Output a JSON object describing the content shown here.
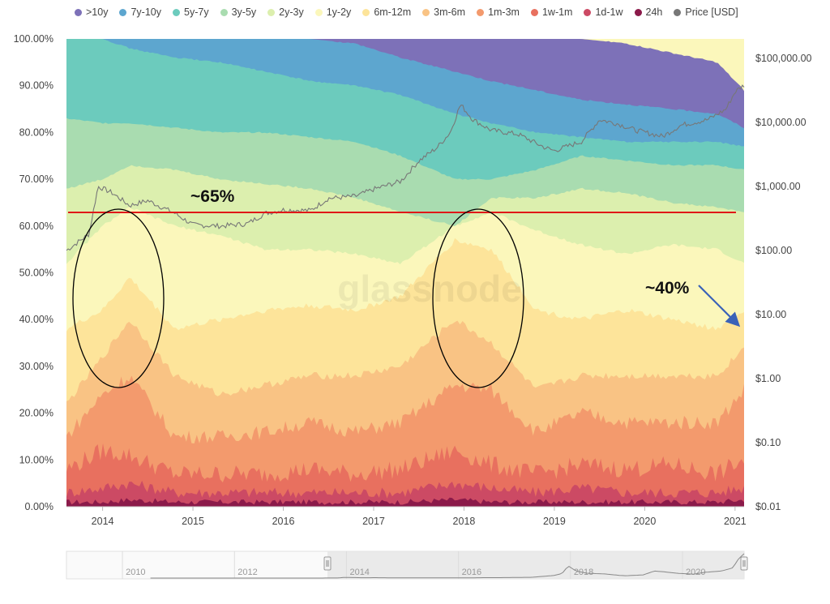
{
  "chart_data": {
    "type": "area",
    "stacked": true,
    "percent_stacked": true,
    "watermark": "glassnode",
    "legend_position": "top",
    "x_ticks": [
      "2014",
      "2015",
      "2016",
      "2017",
      "2018",
      "2019",
      "2020",
      "2021"
    ],
    "y_left": {
      "range": [
        0,
        100
      ],
      "ticks": [
        "0.00%",
        "10.00%",
        "20.00%",
        "30.00%",
        "40.00%",
        "50.00%",
        "60.00%",
        "70.00%",
        "80.00%",
        "90.00%",
        "100.00%"
      ]
    },
    "y_right": {
      "scale": "log",
      "range": [
        0.01,
        200000
      ],
      "ticks": [
        "$0.01",
        "$0.10",
        "$1.00",
        "$10.00",
        "$100.00",
        "$1,000.00",
        "$10,000.00",
        "$100,000.00"
      ]
    },
    "x": [
      2013.6,
      2014.0,
      2014.3,
      2014.8,
      2015.3,
      2015.8,
      2016.3,
      2016.8,
      2017.3,
      2017.9,
      2018.3,
      2018.8,
      2019.3,
      2019.8,
      2020.3,
      2020.8,
      2021.1
    ],
    "series": [
      {
        "name": "24h",
        "color": "#8b1a4a",
        "cum_top": [
          1,
          1,
          1.5,
          1,
          1,
          1,
          1,
          1,
          1,
          1.5,
          1,
          1,
          1,
          1,
          1,
          1,
          1.5
        ]
      },
      {
        "name": "1d-1w",
        "color": "#cc4a64",
        "cum_top": [
          3,
          4,
          5,
          3,
          3,
          3,
          3,
          3,
          3,
          5,
          4,
          3,
          4,
          3,
          3,
          3,
          4
        ]
      },
      {
        "name": "1w-1m",
        "color": "#e8705f",
        "cum_top": [
          8,
          12,
          11,
          7,
          7,
          7,
          8,
          7,
          8,
          12,
          9,
          7,
          9,
          8,
          9,
          7,
          10
        ]
      },
      {
        "name": "1m-3m",
        "color": "#f39a6d",
        "cum_top": [
          15,
          24,
          28,
          15,
          15,
          16,
          18,
          16,
          18,
          26,
          25,
          16,
          20,
          18,
          18,
          18,
          25
        ]
      },
      {
        "name": "3m-6m",
        "color": "#f9c384",
        "cum_top": [
          22,
          32,
          40,
          28,
          24,
          26,
          28,
          28,
          30,
          40,
          35,
          25,
          28,
          28,
          28,
          28,
          34
        ]
      },
      {
        "name": "6m-12m",
        "color": "#fde49a",
        "cum_top": [
          38,
          42,
          49,
          38,
          40,
          42,
          43,
          42,
          45,
          57,
          55,
          42,
          40,
          42,
          40,
          38,
          42
        ]
      },
      {
        "name": "1y-2y",
        "color": "#fbf7bb",
        "cum_top": [
          52,
          60,
          64,
          60,
          58,
          55,
          55,
          54,
          52,
          60,
          63,
          59,
          56,
          54,
          56,
          55,
          52
        ]
      },
      {
        "name": "2y-3y",
        "color": "#dcefae",
        "cum_top": [
          68,
          70,
          73,
          72,
          70,
          69,
          68,
          66,
          63,
          60,
          66,
          66,
          68,
          67,
          65,
          64,
          63
        ]
      },
      {
        "name": "3y-5y",
        "color": "#a9dcb0",
        "cum_top": [
          83,
          82,
          82,
          81,
          80,
          80,
          79,
          78,
          75,
          70,
          70,
          72,
          75,
          74,
          73,
          73,
          72
        ]
      },
      {
        "name": "5y-7y",
        "color": "#6ccbbd",
        "cum_top": [
          100,
          100,
          98,
          96,
          95,
          93,
          91,
          90,
          88,
          84,
          82,
          80,
          79,
          78,
          78,
          78,
          77
        ]
      },
      {
        "name": "7y-10y",
        "color": "#5da6cf",
        "cum_top": [
          100,
          100,
          100,
          100,
          100,
          100,
          100,
          99,
          96,
          93,
          91,
          89,
          87,
          86,
          85,
          84,
          81
        ]
      },
      {
        "name": ">10y",
        "color": "#7d71b8",
        "cum_top": [
          100,
          100,
          100,
          100,
          100,
          100,
          100,
          100,
          100,
          100,
          100,
          100,
          100,
          99,
          97,
          95,
          89
        ]
      }
    ],
    "price_series": {
      "name": "Price [USD]",
      "color": "#777777",
      "x": [
        2013.6,
        2013.85,
        2013.95,
        2014.1,
        2014.3,
        2014.5,
        2014.8,
        2015.0,
        2015.3,
        2015.6,
        2015.8,
        2016.0,
        2016.3,
        2016.5,
        2016.8,
        2017.0,
        2017.3,
        2017.5,
        2017.7,
        2017.85,
        2017.96,
        2018.1,
        2018.3,
        2018.6,
        2018.9,
        2019.0,
        2019.3,
        2019.5,
        2019.7,
        2019.9,
        2020.2,
        2020.4,
        2020.7,
        2020.9,
        2021.0,
        2021.1
      ],
      "values": [
        100,
        180,
        1000,
        800,
        500,
        600,
        380,
        250,
        240,
        260,
        380,
        430,
        420,
        650,
        700,
        900,
        1200,
        2500,
        4000,
        7000,
        19000,
        11000,
        7500,
        6500,
        4000,
        3600,
        5000,
        11000,
        9500,
        7500,
        6000,
        9000,
        11000,
        16000,
        30000,
        38000
      ]
    },
    "annotations": [
      {
        "text": "~65%"
      },
      {
        "text": "~40%"
      }
    ],
    "navigator": {
      "labels": [
        "2010",
        "2012",
        "2014",
        "2016",
        "2018",
        "2020"
      ]
    }
  }
}
